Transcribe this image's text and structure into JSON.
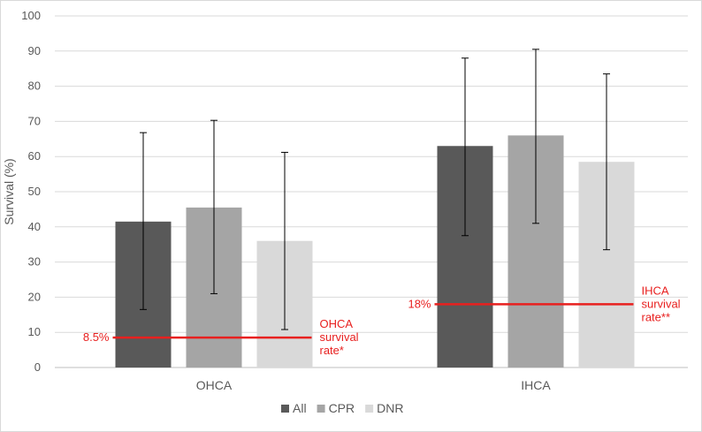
{
  "chart_data": {
    "type": "bar",
    "categories": [
      "OHCA",
      "IHCA"
    ],
    "ylabel": "Survival (%)",
    "ylim": [
      0,
      100
    ],
    "yticks": [
      0,
      10,
      20,
      30,
      40,
      50,
      60,
      70,
      80,
      90,
      100
    ],
    "grid": true,
    "legend_position": "bottom",
    "series": [
      {
        "name": "All",
        "color": "#595959",
        "values": [
          41.5,
          63
        ],
        "err_low": [
          16.5,
          37.5
        ],
        "err_high": [
          66.8,
          88
        ]
      },
      {
        "name": "CPR",
        "color": "#a5a5a5",
        "values": [
          45.5,
          66
        ],
        "err_low": [
          21,
          41
        ],
        "err_high": [
          70.3,
          90.5
        ]
      },
      {
        "name": "DNR",
        "color": "#d9d9d9",
        "values": [
          36,
          58.5
        ],
        "err_low": [
          10.8,
          33.5
        ],
        "err_high": [
          61.2,
          83.5
        ]
      }
    ],
    "reference_lines": [
      {
        "category": "OHCA",
        "value": 8.5,
        "value_label": "8.5%",
        "label_lines": [
          "OHCA",
          "survival",
          "rate*"
        ],
        "color": "#e8201f"
      },
      {
        "category": "IHCA",
        "value": 18,
        "value_label": "18%",
        "label_lines": [
          "IHCA",
          "survival",
          "rate**"
        ],
        "color": "#e8201f"
      }
    ]
  }
}
